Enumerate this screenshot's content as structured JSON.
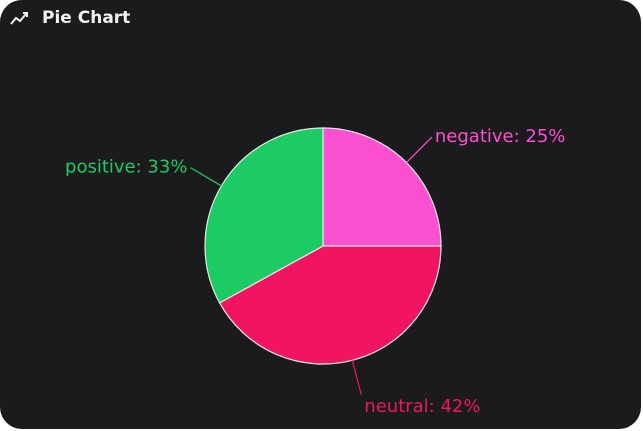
{
  "header": {
    "title": "Pie Chart"
  },
  "chart_data": {
    "type": "pie",
    "categories": [
      "negative",
      "neutral",
      "positive"
    ],
    "values": [
      25,
      42,
      33
    ],
    "value_labels": [
      "negative: 25%",
      "neutral: 42%",
      "positive: 33%"
    ],
    "colors": [
      "#fb50cf",
      "#f01462",
      "#1ccb63"
    ]
  }
}
